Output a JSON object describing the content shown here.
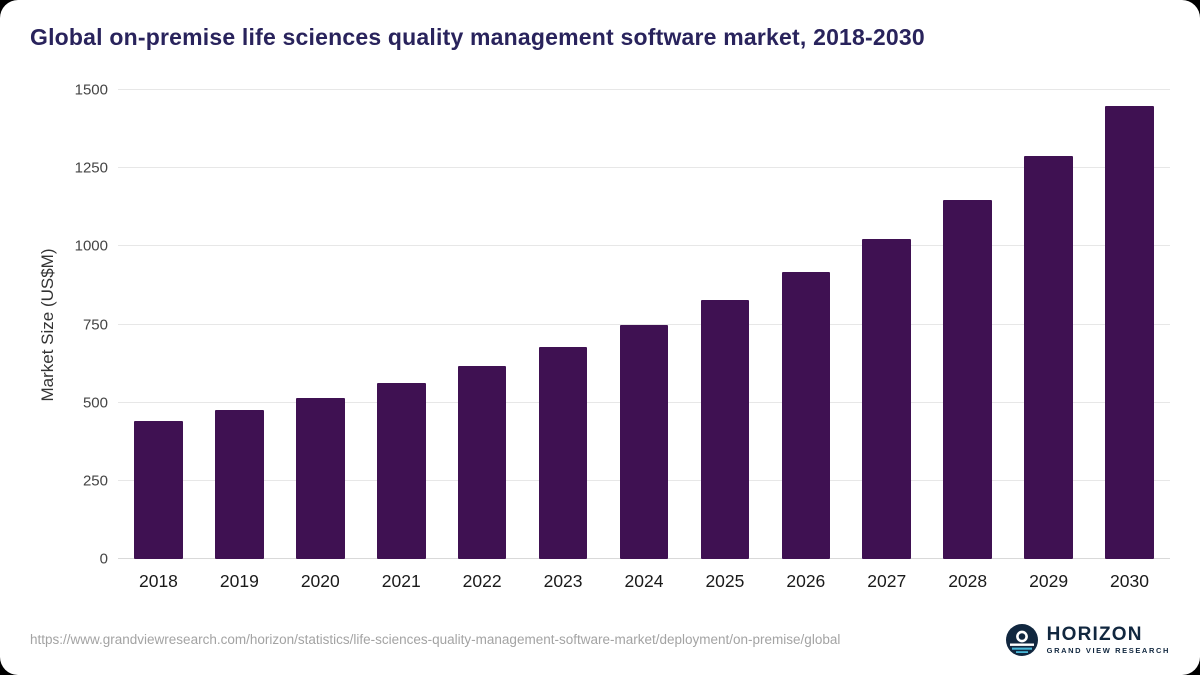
{
  "title": "Global on-premise life sciences quality management software market, 2018-2030",
  "chart_data": {
    "type": "bar",
    "title": "Global on-premise life sciences quality management software market, 2018-2030",
    "categories": [
      "2018",
      "2019",
      "2020",
      "2021",
      "2022",
      "2023",
      "2024",
      "2025",
      "2026",
      "2027",
      "2028",
      "2029",
      "2030"
    ],
    "values": [
      440,
      477,
      515,
      563,
      618,
      678,
      750,
      828,
      918,
      1025,
      1148,
      1288,
      1450
    ],
    "xlabel": "",
    "ylabel": "Market Size (US$M)",
    "ylim": [
      0,
      1500
    ],
    "yticks": [
      0,
      250,
      500,
      750,
      1000,
      1250,
      1500
    ],
    "grid": true,
    "legend": "none",
    "bar_color": "#3f1152"
  },
  "footer": {
    "source_url": "https://www.grandviewresearch.com/horizon/statistics/life-sciences-quality-management-software-market/deployment/on-premise/global",
    "logo_name": "HORIZON",
    "logo_subtext": "GRAND VIEW RESEARCH"
  },
  "colors": {
    "title": "#29235c",
    "bar": "#3f1152",
    "gridline": "#e7e7e7",
    "axis_text": "#444444",
    "url_text": "#a3a3a3",
    "logo_navy": "#11273f",
    "background": "#ffffff"
  }
}
